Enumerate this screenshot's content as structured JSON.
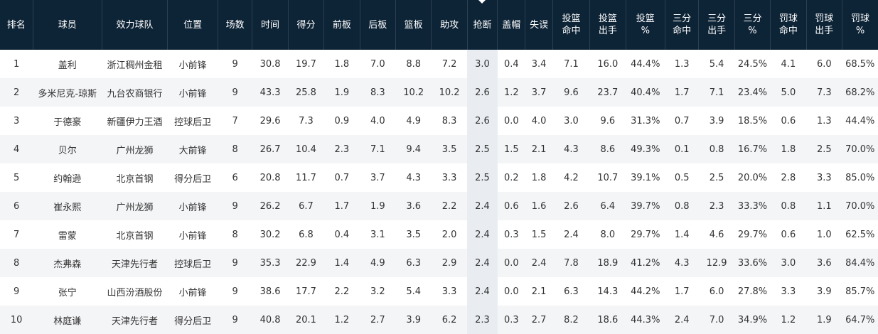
{
  "table": {
    "sorted_column": 11,
    "headers": [
      [
        "排名"
      ],
      [
        "球员"
      ],
      [
        "效力球队"
      ],
      [
        "位置"
      ],
      [
        "场数"
      ],
      [
        "时间"
      ],
      [
        "得分"
      ],
      [
        "前板"
      ],
      [
        "后板"
      ],
      [
        "篮板"
      ],
      [
        "助攻"
      ],
      [
        "抢断"
      ],
      [
        "盖帽"
      ],
      [
        "失误"
      ],
      [
        "投篮",
        "命中"
      ],
      [
        "投篮",
        "出手"
      ],
      [
        "投篮",
        "%"
      ],
      [
        "三分",
        "命中"
      ],
      [
        "三分",
        "出手"
      ],
      [
        "三分",
        "%"
      ],
      [
        "罚球",
        "命中"
      ],
      [
        "罚球",
        "出手"
      ],
      [
        "罚球",
        "%"
      ]
    ],
    "rows": [
      [
        "1",
        "盖利",
        "浙江稠州金租",
        "小前锋",
        "9",
        "30.8",
        "19.7",
        "1.8",
        "7.0",
        "8.8",
        "7.2",
        "3.0",
        "0.4",
        "3.4",
        "7.1",
        "16.0",
        "44.4%",
        "1.3",
        "5.4",
        "24.5%",
        "4.1",
        "6.0",
        "68.5%"
      ],
      [
        "2",
        "多米尼克-琼斯",
        "九台农商银行",
        "小前锋",
        "9",
        "43.3",
        "25.8",
        "1.9",
        "8.3",
        "10.2",
        "10.2",
        "2.6",
        "1.2",
        "3.7",
        "9.6",
        "23.7",
        "40.4%",
        "1.7",
        "7.1",
        "23.4%",
        "5.0",
        "7.3",
        "68.2%"
      ],
      [
        "3",
        "于德豪",
        "新疆伊力王酒",
        "控球后卫",
        "7",
        "29.6",
        "7.3",
        "0.9",
        "4.0",
        "4.9",
        "8.3",
        "2.6",
        "0.0",
        "4.0",
        "3.0",
        "9.6",
        "31.3%",
        "0.7",
        "3.9",
        "18.5%",
        "0.6",
        "1.3",
        "44.4%"
      ],
      [
        "4",
        "贝尔",
        "广州龙狮",
        "大前锋",
        "8",
        "26.7",
        "10.4",
        "2.3",
        "7.1",
        "9.4",
        "3.5",
        "2.5",
        "1.5",
        "2.1",
        "4.3",
        "8.6",
        "49.3%",
        "0.1",
        "0.8",
        "16.7%",
        "1.8",
        "2.5",
        "70.0%"
      ],
      [
        "5",
        "约翰逊",
        "北京首钢",
        "得分后卫",
        "6",
        "20.8",
        "11.7",
        "0.7",
        "3.7",
        "4.3",
        "3.3",
        "2.5",
        "0.2",
        "1.8",
        "4.2",
        "10.7",
        "39.1%",
        "0.5",
        "2.5",
        "20.0%",
        "2.8",
        "3.3",
        "85.0%"
      ],
      [
        "6",
        "崔永熙",
        "广州龙狮",
        "小前锋",
        "9",
        "26.2",
        "6.7",
        "1.7",
        "1.9",
        "3.6",
        "2.2",
        "2.4",
        "0.6",
        "1.6",
        "2.6",
        "6.4",
        "39.7%",
        "0.8",
        "2.3",
        "33.3%",
        "0.8",
        "1.1",
        "70.0%"
      ],
      [
        "7",
        "雷蒙",
        "北京首钢",
        "小前锋",
        "8",
        "30.2",
        "6.8",
        "0.4",
        "3.1",
        "3.5",
        "2.0",
        "2.4",
        "0.3",
        "1.5",
        "2.4",
        "8.0",
        "29.7%",
        "1.4",
        "4.6",
        "29.7%",
        "0.6",
        "1.0",
        "62.5%"
      ],
      [
        "8",
        "杰弗森",
        "天津先行者",
        "控球后卫",
        "9",
        "35.3",
        "22.9",
        "1.4",
        "4.9",
        "6.3",
        "2.9",
        "2.4",
        "0.0",
        "2.4",
        "7.8",
        "18.9",
        "41.2%",
        "4.3",
        "12.9",
        "33.6%",
        "3.0",
        "3.6",
        "84.4%"
      ],
      [
        "9",
        "张宁",
        "山西汾酒股份",
        "小前锋",
        "9",
        "38.6",
        "17.7",
        "2.2",
        "3.2",
        "5.4",
        "3.3",
        "2.4",
        "0.0",
        "2.1",
        "6.3",
        "14.3",
        "44.2%",
        "1.7",
        "6.0",
        "27.8%",
        "3.3",
        "3.9",
        "85.7%"
      ],
      [
        "10",
        "林庭谦",
        "天津先行者",
        "得分后卫",
        "9",
        "40.8",
        "20.1",
        "1.2",
        "2.7",
        "3.9",
        "6.2",
        "2.3",
        "0.3",
        "2.7",
        "8.2",
        "18.6",
        "44.3%",
        "2.4",
        "7.0",
        "34.9%",
        "1.2",
        "1.9",
        "64.7%"
      ]
    ]
  }
}
